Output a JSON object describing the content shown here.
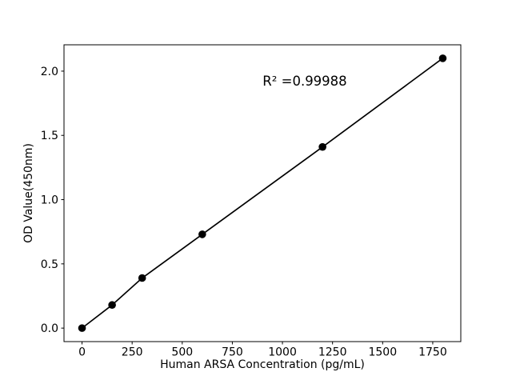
{
  "window": {
    "background": "#ffffff"
  },
  "chart_data": {
    "type": "line",
    "title": "",
    "xlabel": "Human ARSA Concentration (pg/mL)",
    "ylabel": "OD Value(450nm)",
    "annotation": "R² =0.99988",
    "x": [
      0,
      150,
      300,
      600,
      1200,
      1800
    ],
    "y": [
      0.0,
      0.18,
      0.39,
      0.73,
      1.41,
      2.1
    ],
    "xlim": [
      -90,
      1890
    ],
    "ylim": [
      -0.105,
      2.205
    ],
    "xticks": [
      0,
      250,
      500,
      750,
      1000,
      1250,
      1500,
      1750
    ],
    "ytick_labels": [
      "0.0",
      "0.5",
      "1.0",
      "1.5",
      "2.0"
    ],
    "grid": false,
    "legend": "none",
    "marker": "filled-circle",
    "colors": {
      "line": "#000000",
      "marker": "#000000",
      "text": "#000000",
      "frame": "#000000",
      "background": "#ffffff"
    }
  }
}
